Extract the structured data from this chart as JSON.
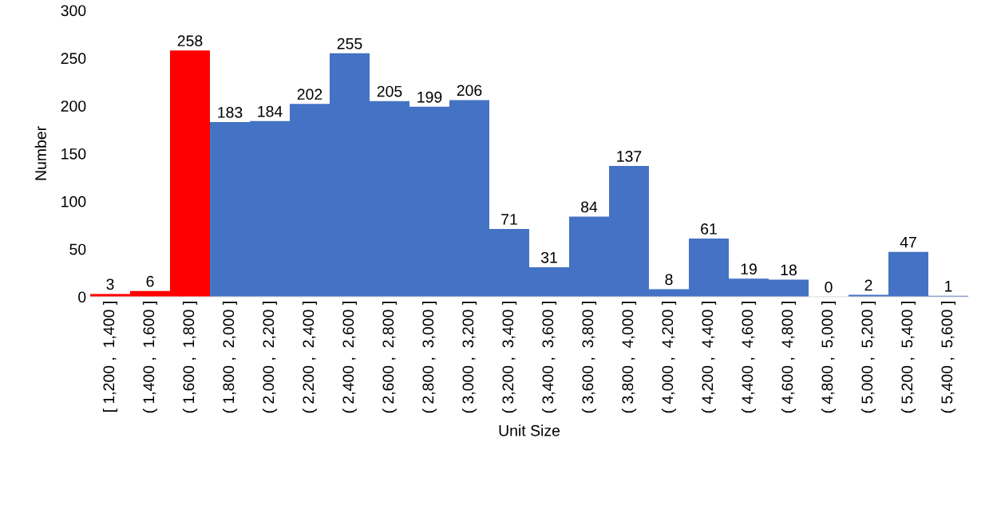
{
  "chart_data": {
    "type": "bar",
    "xlabel": "Unit Size",
    "ylabel": "Number",
    "categories": [
      "[ 1,200 ,  1,400 ]",
      "( 1,400 ,  1,600 ]",
      "( 1,600 ,  1,800 ]",
      "( 1,800 ,  2,000 ]",
      "( 2,000 ,  2,200 ]",
      "( 2,200 ,  2,400 ]",
      "( 2,400 ,  2,600 ]",
      "( 2,600 ,  2,800 ]",
      "( 2,800 ,  3,000 ]",
      "( 3,000 ,  3,200 ]",
      "( 3,200 ,  3,400 ]",
      "( 3,400 ,  3,600 ]",
      "( 3,600 ,  3,800 ]",
      "( 3,800 ,  4,000 ]",
      "( 4,000 ,  4,200 ]",
      "( 4,200 ,  4,400 ]",
      "( 4,400 ,  4,600 ]",
      "( 4,600 ,  4,800 ]",
      "( 4,800 ,  5,000 ]",
      "( 5,000 ,  5,200 ]",
      "( 5,200 ,  5,400 ]",
      "( 5,400 ,  5,600 ]"
    ],
    "values": [
      3,
      6,
      258,
      183,
      184,
      202,
      255,
      205,
      199,
      206,
      71,
      31,
      84,
      137,
      8,
      61,
      19,
      18,
      0,
      2,
      47,
      1
    ],
    "colors": [
      "#ff0000",
      "#ff0000",
      "#ff0000",
      "#4472c4",
      "#4472c4",
      "#4472c4",
      "#4472c4",
      "#4472c4",
      "#4472c4",
      "#4472c4",
      "#4472c4",
      "#4472c4",
      "#4472c4",
      "#4472c4",
      "#4472c4",
      "#4472c4",
      "#4472c4",
      "#4472c4",
      "#4472c4",
      "#4472c4",
      "#4472c4",
      "#4472c4"
    ],
    "ylim": [
      0,
      300
    ],
    "yticks": [
      0,
      50,
      100,
      150,
      200,
      250,
      300
    ],
    "data_labels": true,
    "grid": false,
    "legend": false
  }
}
